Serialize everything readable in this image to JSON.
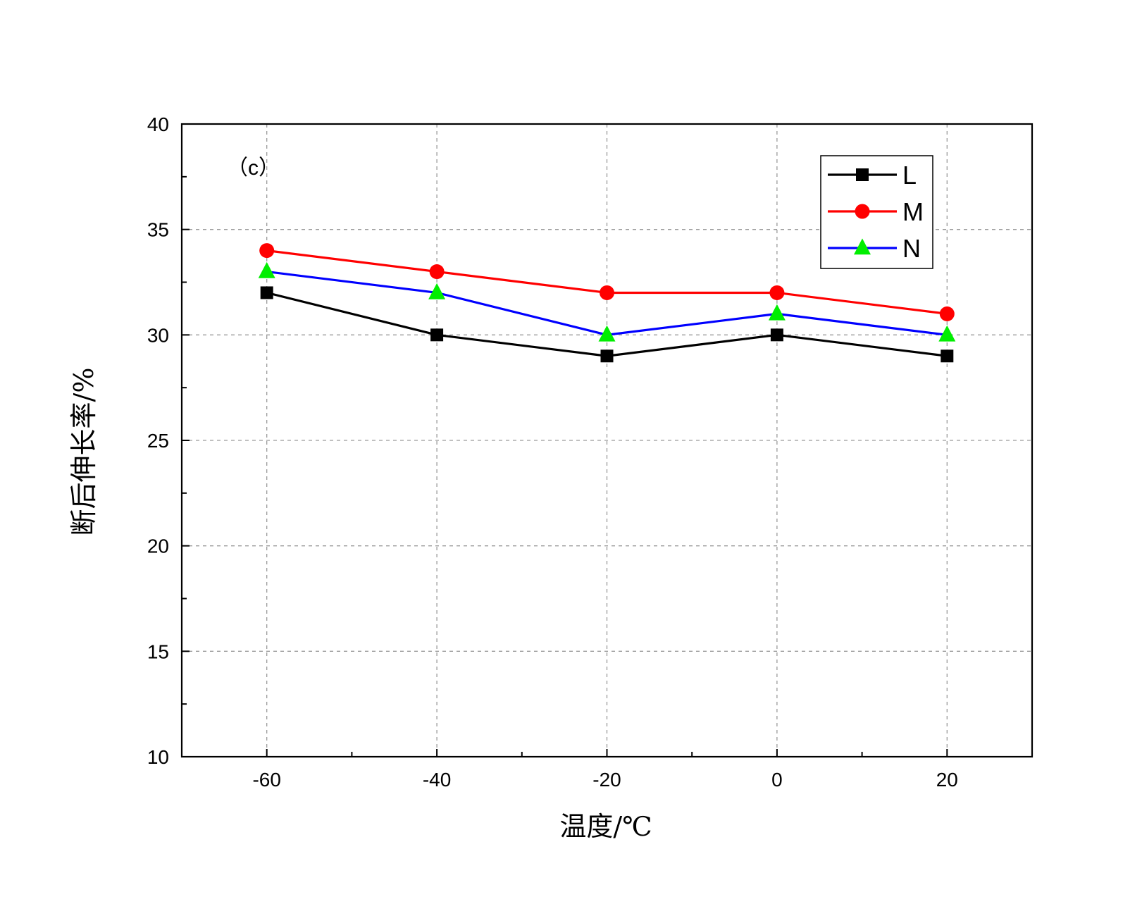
{
  "chart_data": {
    "type": "line",
    "panel_label": "（c）",
    "xlabel": "温度/℃",
    "ylabel": "断后伸长率/%",
    "x": [
      -60,
      -40,
      -20,
      0,
      20
    ],
    "xlim": [
      -70,
      30
    ],
    "ylim": [
      10,
      40
    ],
    "xticks": [
      "-60",
      "-40",
      "-20",
      "0",
      "20"
    ],
    "yticks": [
      "10",
      "15",
      "20",
      "25",
      "30",
      "35",
      "40"
    ],
    "grid": true,
    "legend_position": "top-right",
    "series": [
      {
        "name": "L",
        "values": [
          32,
          30,
          29,
          30,
          29
        ],
        "color": "#000000",
        "marker": "square",
        "marker_color": "#000000"
      },
      {
        "name": "M",
        "values": [
          34,
          33,
          32,
          32,
          31
        ],
        "color": "#ff0000",
        "marker": "circle",
        "marker_color": "#ff0000"
      },
      {
        "name": "N",
        "values": [
          33,
          32,
          30,
          31,
          30
        ],
        "color": "#0000ff",
        "marker": "triangle",
        "marker_color": "#00ee00"
      }
    ]
  }
}
